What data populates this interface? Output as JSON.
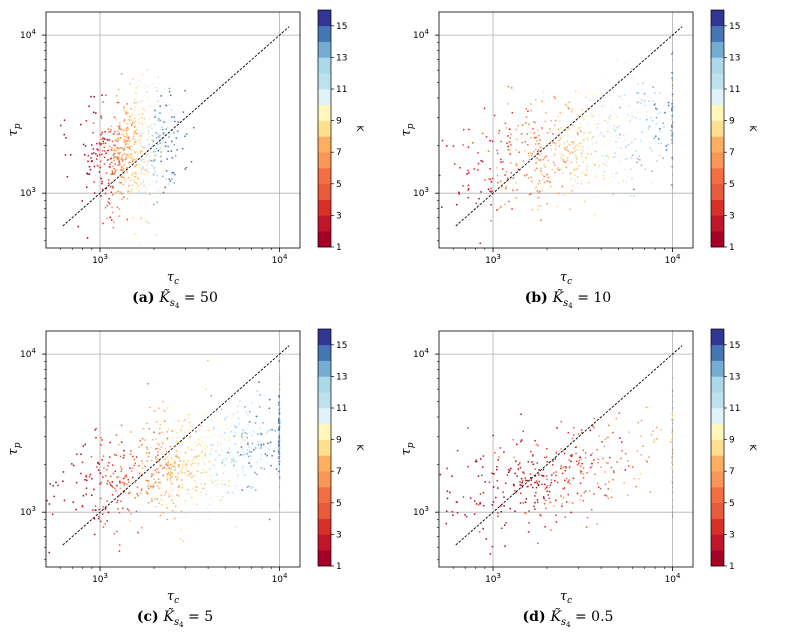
{
  "chart_data": [
    {
      "type": "scatter",
      "panel_tag": "(a)",
      "param_symbol": "K̃",
      "param_sub": "s",
      "param_subsub": "4",
      "param_value": "50",
      "xlabel": "τ",
      "xlabel_sub": "c",
      "ylabel": "τ",
      "ylabel_sub": "p",
      "xscale": "log",
      "yscale": "log",
      "xlim": [
        500,
        13000
      ],
      "ylim": [
        450,
        14000
      ],
      "xticks": [
        {
          "value": 1000,
          "base": "10",
          "exp": "3"
        },
        {
          "value": 10000,
          "base": "10",
          "exp": "4"
        }
      ],
      "yticks": [
        {
          "value": 1000,
          "base": "10",
          "exp": "3"
        },
        {
          "value": 10000,
          "base": "10",
          "exp": "4"
        }
      ],
      "grid": true,
      "reference_line": "y = x (black dashed)",
      "colorbar": {
        "label": "K",
        "min": 1,
        "max": 16,
        "levels": 15,
        "ticks": [
          1,
          3,
          5,
          7,
          9,
          11,
          13,
          15
        ]
      },
      "cloud": {
        "cx": 1550,
        "cy": 1900,
        "sx": 0.13,
        "sy": 0.18,
        "cap": null,
        "color_center": 9,
        "color_slope": 9,
        "n": 700
      }
    },
    {
      "type": "scatter",
      "panel_tag": "(b)",
      "param_symbol": "K̃",
      "param_sub": "s",
      "param_subsub": "4",
      "param_value": "10",
      "xlabel": "τ",
      "xlabel_sub": "c",
      "ylabel": "τ",
      "ylabel_sub": "p",
      "xscale": "log",
      "yscale": "log",
      "xlim": [
        500,
        13000
      ],
      "ylim": [
        450,
        14000
      ],
      "xticks": [
        {
          "value": 1000,
          "base": "10",
          "exp": "3"
        },
        {
          "value": 10000,
          "base": "10",
          "exp": "4"
        }
      ],
      "yticks": [
        {
          "value": 1000,
          "base": "10",
          "exp": "3"
        },
        {
          "value": 10000,
          "base": "10",
          "exp": "4"
        }
      ],
      "grid": true,
      "reference_line": "y = x (black dashed)",
      "colorbar": {
        "label": "K",
        "min": 1,
        "max": 16,
        "levels": 15,
        "ticks": [
          1,
          3,
          5,
          7,
          9,
          11,
          13,
          15
        ]
      },
      "cloud": {
        "cx": 2800,
        "cy": 1900,
        "sx": 0.33,
        "sy": 0.17,
        "cap": 10000,
        "color_center": 9,
        "color_slope": 8,
        "n": 650
      }
    },
    {
      "type": "scatter",
      "panel_tag": "(c)",
      "param_symbol": "K̃",
      "param_sub": "s",
      "param_subsub": "4",
      "param_value": "5",
      "xlabel": "τ",
      "xlabel_sub": "c",
      "ylabel": "τ",
      "ylabel_sub": "p",
      "xscale": "log",
      "yscale": "log",
      "xlim": [
        500,
        13000
      ],
      "ylim": [
        450,
        14000
      ],
      "xticks": [
        {
          "value": 1000,
          "base": "10",
          "exp": "3"
        },
        {
          "value": 10000,
          "base": "10",
          "exp": "4"
        }
      ],
      "yticks": [
        {
          "value": 1000,
          "base": "10",
          "exp": "3"
        },
        {
          "value": 10000,
          "base": "10",
          "exp": "4"
        }
      ],
      "grid": true,
      "reference_line": "y = x (black dashed)",
      "colorbar": {
        "label": "K",
        "min": 1,
        "max": 16,
        "levels": 15,
        "ticks": [
          1,
          3,
          5,
          7,
          9,
          11,
          13,
          15
        ]
      },
      "cloud": {
        "cx": 2900,
        "cy": 2000,
        "sx": 0.34,
        "sy": 0.17,
        "cap": 10000,
        "color_center": 9,
        "color_slope": 9,
        "n": 850
      }
    },
    {
      "type": "scatter",
      "panel_tag": "(d)",
      "param_symbol": "K̃",
      "param_sub": "s",
      "param_subsub": "4",
      "param_value": "0.5",
      "xlabel": "τ",
      "xlabel_sub": "c",
      "ylabel": "τ",
      "ylabel_sub": "p",
      "xscale": "log",
      "yscale": "log",
      "xlim": [
        500,
        13000
      ],
      "ylim": [
        450,
        14000
      ],
      "xticks": [
        {
          "value": 1000,
          "base": "10",
          "exp": "3"
        },
        {
          "value": 10000,
          "base": "10",
          "exp": "4"
        }
      ],
      "yticks": [
        {
          "value": 1000,
          "base": "10",
          "exp": "3"
        },
        {
          "value": 10000,
          "base": "10",
          "exp": "4"
        }
      ],
      "grid": true,
      "reference_line": "y = x (black dashed)",
      "colorbar": {
        "label": "K",
        "min": 1,
        "max": 16,
        "levels": 15,
        "ticks": [
          1,
          3,
          5,
          7,
          9,
          11,
          13,
          15
        ]
      },
      "cloud": {
        "cx": 2300,
        "cy": 1650,
        "sx": 0.34,
        "sy": 0.15,
        "cap": 10000,
        "color_center": 4,
        "color_slope": 4,
        "n": 400
      }
    }
  ],
  "colorbar_colors": [
    "#a50026",
    "#c0162a",
    "#d73027",
    "#e75a3a",
    "#f46d43",
    "#f99658",
    "#fdae61",
    "#fec980",
    "#fee090",
    "#fff7bb",
    "#e0f3f8",
    "#bde2ee",
    "#abd9e9",
    "#74add1",
    "#4575b4",
    "#313695"
  ]
}
